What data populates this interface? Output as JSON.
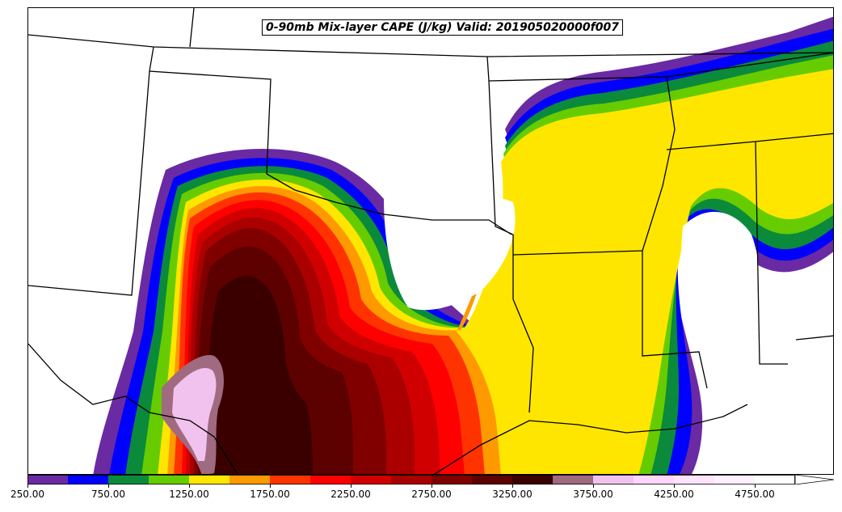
{
  "title": "0-90mb Mix-layer CAPE (J/kg) Valid: 201905020000f007",
  "colorbar": {
    "levels": [
      250,
      500,
      750,
      1000,
      1250,
      1500,
      1750,
      2000,
      2250,
      2500,
      2750,
      3000,
      3250,
      3500,
      3750,
      4000,
      4250,
      4500,
      4750,
      5000
    ],
    "colors": [
      "#6a2aa3",
      "#0000ff",
      "#0b8a3c",
      "#66cc00",
      "#ffe600",
      "#ff9900",
      "#ff3300",
      "#ff0000",
      "#d10000",
      "#aa0000",
      "#800000",
      "#5c0000",
      "#3a0000",
      "#a06a80",
      "#f2c2ee",
      "#ffd6ff",
      "#ffe3ff",
      "#fff0ff",
      "#ffffff"
    ],
    "tick_labels": [
      "250.00",
      "750.00",
      "1250.00",
      "1750.00",
      "2250.00",
      "2750.00",
      "3250.00",
      "3750.00",
      "4250.00",
      "4750.00"
    ],
    "extend": "max"
  },
  "map": {
    "region": "South-central United States",
    "boundaries": [
      "state-borders",
      "coastline"
    ]
  }
}
